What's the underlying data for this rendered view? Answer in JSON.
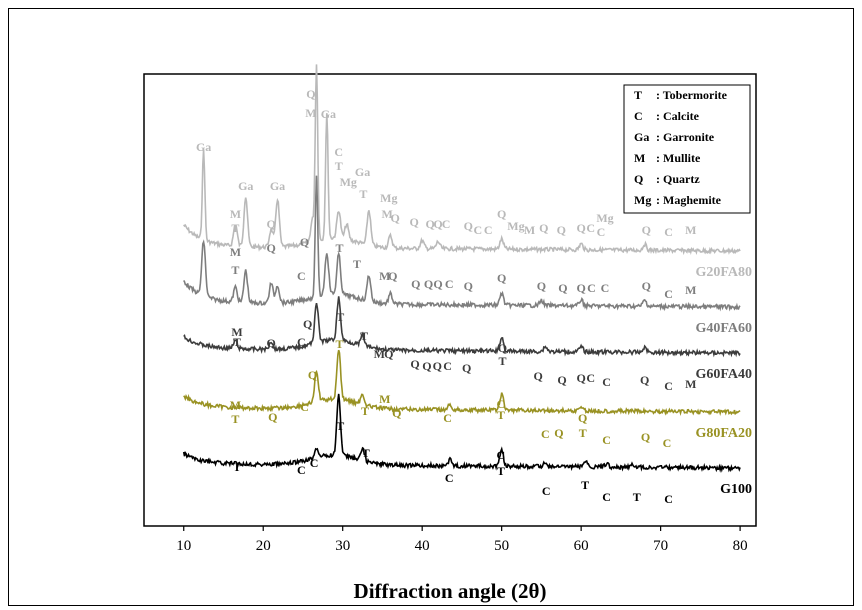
{
  "chart_data": {
    "type": "line",
    "xlabel": "Diffraction angle (2θ)",
    "ylabel": "",
    "xlim": [
      5,
      82
    ],
    "x_ticks": [
      10,
      20,
      30,
      40,
      50,
      60,
      70,
      80
    ],
    "x_tick_labels": [
      "10",
      "20",
      "30",
      "40",
      "50",
      "60",
      "70",
      "80"
    ],
    "legend": [
      {
        "symbol": "T",
        "sep": ":",
        "name": "Tobermorite"
      },
      {
        "symbol": "C",
        "sep": ":",
        "name": "Calcite"
      },
      {
        "symbol": "Ga",
        "sep": ":",
        "name": "Garronite"
      },
      {
        "symbol": "M",
        "sep": ":",
        "name": "Mullite"
      },
      {
        "symbol": "Q",
        "sep": ":",
        "name": "Quartz"
      },
      {
        "symbol": "Mg",
        "sep": ":",
        "name": "Maghemite"
      }
    ],
    "legend_position": "top-right",
    "series": [
      {
        "name": "G20FA80",
        "color": "#b9b9b9",
        "baseline": 248,
        "decay": 22,
        "peaks": [
          [
            12.5,
            90
          ],
          [
            16.5,
            22
          ],
          [
            17.8,
            50
          ],
          [
            21.0,
            18
          ],
          [
            21.8,
            48
          ],
          [
            26.2,
            22
          ],
          [
            26.7,
            175
          ],
          [
            28.0,
            125
          ],
          [
            29.5,
            28
          ],
          [
            30.5,
            15
          ],
          [
            33.3,
            35
          ],
          [
            36.0,
            12
          ],
          [
            40.0,
            8
          ],
          [
            42.0,
            7
          ],
          [
            50.0,
            10
          ],
          [
            60.0,
            6
          ],
          [
            68.0,
            6
          ]
        ],
        "labels": [
          {
            "t": "Ga",
            "x": 12.5,
            "dy": -97
          },
          {
            "t": "M",
            "x": 16.5,
            "dy": -30
          },
          {
            "t": "T",
            "x": 16.5,
            "dy": -16
          },
          {
            "t": "Ga",
            "x": 17.8,
            "dy": -58
          },
          {
            "t": "Q",
            "x": 21.0,
            "dy": -20
          },
          {
            "t": "Ga",
            "x": 21.8,
            "dy": -58
          },
          {
            "t": "Q",
            "x": 26.0,
            "dy": -150
          },
          {
            "t": "M",
            "x": 26.0,
            "dy": -131
          },
          {
            "t": "Ga",
            "x": 28.2,
            "dy": -130
          },
          {
            "t": "C",
            "x": 29.5,
            "dy": -92
          },
          {
            "t": "T",
            "x": 29.5,
            "dy": -78
          },
          {
            "t": "Mg",
            "x": 30.7,
            "dy": -62
          },
          {
            "t": "Ga",
            "x": 32.5,
            "dy": -72
          },
          {
            "t": "T",
            "x": 32.6,
            "dy": -50
          },
          {
            "t": "Mg",
            "x": 35.8,
            "dy": -46
          },
          {
            "t": "M",
            "x": 35.6,
            "dy": -30
          },
          {
            "t": "Q",
            "x": 36.6,
            "dy": -26
          },
          {
            "t": "Q",
            "x": 39.0,
            "dy": -22
          },
          {
            "t": "Q",
            "x": 41.0,
            "dy": -20
          },
          {
            "t": "Q",
            "x": 42.0,
            "dy": -20
          },
          {
            "t": "C",
            "x": 43.0,
            "dy": -20
          },
          {
            "t": "Q",
            "x": 45.8,
            "dy": -18
          },
          {
            "t": "C",
            "x": 47.0,
            "dy": -14
          },
          {
            "t": "C",
            "x": 48.3,
            "dy": -14
          },
          {
            "t": "Q",
            "x": 50.0,
            "dy": -30
          },
          {
            "t": "Mg",
            "x": 51.8,
            "dy": -18
          },
          {
            "t": "M",
            "x": 53.5,
            "dy": -14
          },
          {
            "t": "Q",
            "x": 55.3,
            "dy": -16
          },
          {
            "t": "Q",
            "x": 57.5,
            "dy": -14
          },
          {
            "t": "Q",
            "x": 60.0,
            "dy": -16
          },
          {
            "t": "C",
            "x": 61.2,
            "dy": -16
          },
          {
            "t": "Mg",
            "x": 63.0,
            "dy": -26
          },
          {
            "t": "C",
            "x": 62.5,
            "dy": -12
          },
          {
            "t": "Q",
            "x": 68.2,
            "dy": -14
          },
          {
            "t": "C",
            "x": 71.0,
            "dy": -12
          },
          {
            "t": "M",
            "x": 73.8,
            "dy": -14
          }
        ]
      },
      {
        "name": "G40FA60",
        "color": "#7e7e7e",
        "baseline": 304,
        "decay": 22,
        "peaks": [
          [
            12.5,
            55
          ],
          [
            16.5,
            15
          ],
          [
            17.8,
            32
          ],
          [
            21.0,
            20
          ],
          [
            21.8,
            18
          ],
          [
            26.7,
            120
          ],
          [
            28.0,
            42
          ],
          [
            29.5,
            40
          ],
          [
            33.3,
            26
          ],
          [
            36.0,
            10
          ],
          [
            50.0,
            12
          ],
          [
            55.0,
            5
          ],
          [
            60.0,
            6
          ],
          [
            68.0,
            6
          ]
        ],
        "labels": [
          {
            "t": "M",
            "x": 16.5,
            "dy": -48
          },
          {
            "t": "T",
            "x": 16.5,
            "dy": -30
          },
          {
            "t": "Q",
            "x": 21.0,
            "dy": -52
          },
          {
            "t": "C",
            "x": 24.8,
            "dy": -24
          },
          {
            "t": "Q",
            "x": 25.2,
            "dy": -58
          },
          {
            "t": "T",
            "x": 29.6,
            "dy": -52
          },
          {
            "t": "T",
            "x": 31.8,
            "dy": -36
          },
          {
            "t": "M",
            "x": 35.3,
            "dy": -24
          },
          {
            "t": "Q",
            "x": 36.3,
            "dy": -24
          },
          {
            "t": "Q",
            "x": 39.2,
            "dy": -16
          },
          {
            "t": "Q",
            "x": 40.8,
            "dy": -16
          },
          {
            "t": "Q",
            "x": 42.0,
            "dy": -16
          },
          {
            "t": "C",
            "x": 43.4,
            "dy": -16
          },
          {
            "t": "Q",
            "x": 45.8,
            "dy": -14
          },
          {
            "t": "Q",
            "x": 50.0,
            "dy": -22
          },
          {
            "t": "Q",
            "x": 55.0,
            "dy": -14
          },
          {
            "t": "Q",
            "x": 57.7,
            "dy": -12
          },
          {
            "t": "Q",
            "x": 60.0,
            "dy": -12
          },
          {
            "t": "C",
            "x": 61.3,
            "dy": -12
          },
          {
            "t": "C",
            "x": 63.0,
            "dy": -12
          },
          {
            "t": "Q",
            "x": 68.2,
            "dy": -14
          },
          {
            "t": "C",
            "x": 71.0,
            "dy": -6
          },
          {
            "t": "M",
            "x": 73.8,
            "dy": -10
          }
        ]
      },
      {
        "name": "G60FA40",
        "color": "#3c3c3c",
        "baseline": 350,
        "decay": 12,
        "peaks": [
          [
            16.5,
            8
          ],
          [
            21.0,
            8
          ],
          [
            26.7,
            40
          ],
          [
            29.5,
            42
          ],
          [
            32.5,
            10
          ],
          [
            50.0,
            14
          ],
          [
            55.5,
            5
          ],
          [
            60.0,
            5
          ],
          [
            68.0,
            5
          ]
        ],
        "labels": [
          {
            "t": "M",
            "x": 16.7,
            "dy": -14
          },
          {
            "t": "T",
            "x": 16.7,
            "dy": -4
          },
          {
            "t": "Q",
            "x": 21.0,
            "dy": -3
          },
          {
            "t": "C",
            "x": 24.8,
            "dy": -4
          },
          {
            "t": "Q",
            "x": 25.6,
            "dy": -22
          },
          {
            "t": "T",
            "x": 29.7,
            "dy": -29
          },
          {
            "t": "T",
            "x": 32.7,
            "dy": -10
          },
          {
            "t": "M",
            "x": 34.6,
            "dy": 8
          },
          {
            "t": "Q",
            "x": 35.8,
            "dy": 8
          },
          {
            "t": "Q",
            "x": 39.1,
            "dy": 18
          },
          {
            "t": "Q",
            "x": 40.6,
            "dy": 20
          },
          {
            "t": "Q",
            "x": 41.9,
            "dy": 20
          },
          {
            "t": "C",
            "x": 43.2,
            "dy": 20
          },
          {
            "t": "Q",
            "x": 45.6,
            "dy": 22
          },
          {
            "t": "Q",
            "x": 50.1,
            "dy": 2
          },
          {
            "t": "T",
            "x": 50.1,
            "dy": 15
          },
          {
            "t": "Q",
            "x": 54.6,
            "dy": 30
          },
          {
            "t": "Q",
            "x": 57.6,
            "dy": 34
          },
          {
            "t": "Q",
            "x": 60.0,
            "dy": 32
          },
          {
            "t": "C",
            "x": 61.2,
            "dy": 32
          },
          {
            "t": "C",
            "x": 63.2,
            "dy": 36
          },
          {
            "t": "Q",
            "x": 68.0,
            "dy": 34
          },
          {
            "t": "C",
            "x": 71.0,
            "dy": 40
          },
          {
            "t": "M",
            "x": 73.8,
            "dy": 38
          }
        ]
      },
      {
        "name": "G80FA20",
        "color": "#999223",
        "baseline": 409,
        "decay": 12,
        "peaks": [
          [
            26.7,
            30
          ],
          [
            29.5,
            50
          ],
          [
            32.5,
            10
          ],
          [
            43.5,
            5
          ],
          [
            50.0,
            16
          ],
          [
            60.0,
            4
          ]
        ],
        "labels": [
          {
            "t": "M",
            "x": 16.5,
            "dy": 0
          },
          {
            "t": "T",
            "x": 16.5,
            "dy": 14
          },
          {
            "t": "Q",
            "x": 21.2,
            "dy": 12
          },
          {
            "t": "C",
            "x": 25.2,
            "dy": 2
          },
          {
            "t": "Q",
            "x": 26.2,
            "dy": -30
          },
          {
            "t": "T",
            "x": 29.6,
            "dy": -61
          },
          {
            "t": "T",
            "x": 32.8,
            "dy": 6
          },
          {
            "t": "M",
            "x": 35.3,
            "dy": -6
          },
          {
            "t": "Q",
            "x": 36.8,
            "dy": 8
          },
          {
            "t": "C",
            "x": 43.2,
            "dy": 13
          },
          {
            "t": "C",
            "x": 49.9,
            "dy": -1
          },
          {
            "t": "T",
            "x": 49.9,
            "dy": 10
          },
          {
            "t": "C",
            "x": 55.5,
            "dy": 29
          },
          {
            "t": "Q",
            "x": 57.2,
            "dy": 28
          },
          {
            "t": "Q",
            "x": 60.2,
            "dy": 13
          },
          {
            "t": "T",
            "x": 60.2,
            "dy": 28
          },
          {
            "t": "C",
            "x": 63.2,
            "dy": 35
          },
          {
            "t": "Q",
            "x": 68.1,
            "dy": 32
          },
          {
            "t": "C",
            "x": 70.8,
            "dy": 38
          }
        ]
      },
      {
        "name": "G100",
        "color": "#000000",
        "baseline": 465,
        "decay": 10,
        "peaks": [
          [
            26.7,
            10
          ],
          [
            29.5,
            60
          ],
          [
            32.5,
            12
          ],
          [
            43.5,
            6
          ],
          [
            50.0,
            16
          ],
          [
            55.5,
            4
          ],
          [
            60.5,
            6
          ],
          [
            63.2,
            3
          ],
          [
            66.5,
            3
          ]
        ],
        "labels": [
          {
            "t": "T",
            "x": 16.7,
            "dy": 6
          },
          {
            "t": "C",
            "x": 24.8,
            "dy": 9
          },
          {
            "t": "C",
            "x": 26.4,
            "dy": 2
          },
          {
            "t": "T",
            "x": 29.7,
            "dy": -35
          },
          {
            "t": "T",
            "x": 32.9,
            "dy": -8
          },
          {
            "t": "C",
            "x": 43.4,
            "dy": 17
          },
          {
            "t": "C",
            "x": 49.9,
            "dy": -6
          },
          {
            "t": "T",
            "x": 49.9,
            "dy": 10
          },
          {
            "t": "C",
            "x": 55.6,
            "dy": 30
          },
          {
            "t": "T",
            "x": 60.5,
            "dy": 24
          },
          {
            "t": "C",
            "x": 63.2,
            "dy": 36
          },
          {
            "t": "T",
            "x": 67.0,
            "dy": 36
          },
          {
            "t": "C",
            "x": 71.0,
            "dy": 38
          }
        ]
      }
    ]
  }
}
